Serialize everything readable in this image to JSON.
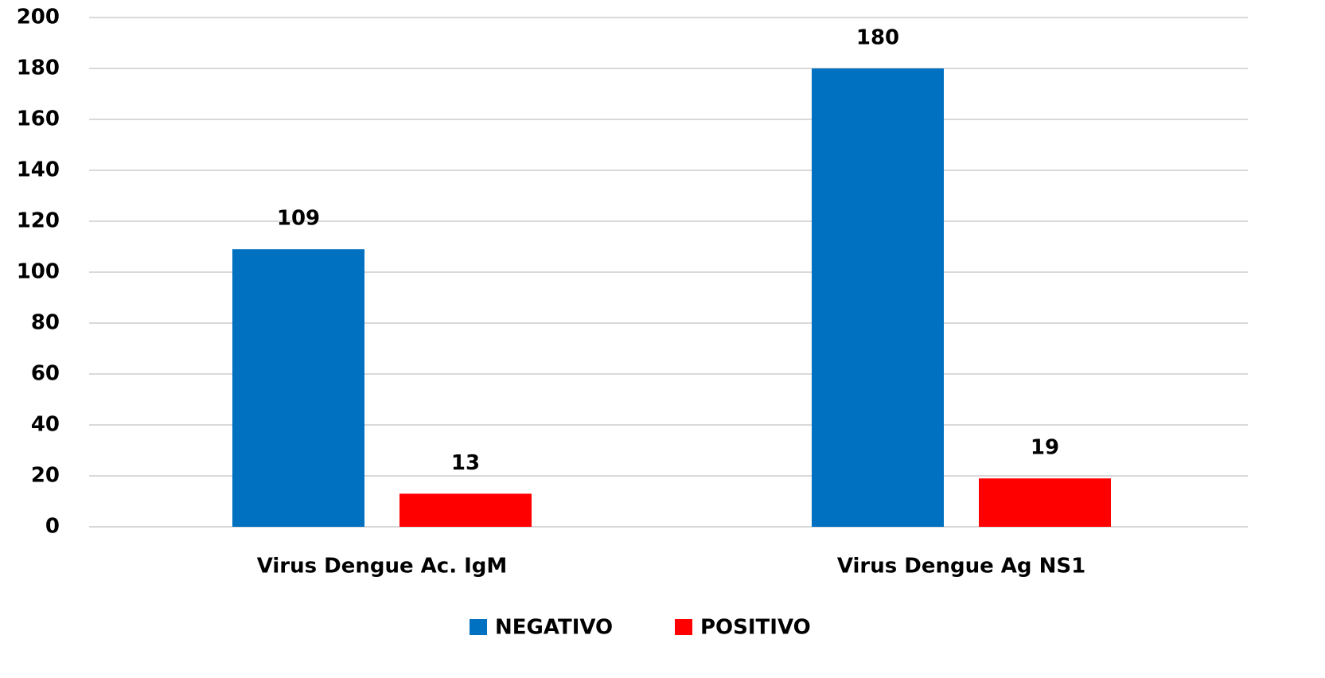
{
  "chart_data": {
    "type": "bar",
    "categories": [
      "Virus Dengue Ac. IgM",
      "Virus Dengue Ag NS1"
    ],
    "series": [
      {
        "name": "NEGATIVO",
        "color": "#0070c0",
        "values": [
          109,
          180
        ]
      },
      {
        "name": "POSITIVO",
        "color": "#ff0000",
        "values": [
          13,
          19
        ]
      }
    ],
    "ylim": [
      0,
      200
    ],
    "yticks": [
      0,
      20,
      40,
      60,
      80,
      100,
      120,
      140,
      160,
      180,
      200
    ],
    "grid": true,
    "legend": "bottom"
  }
}
